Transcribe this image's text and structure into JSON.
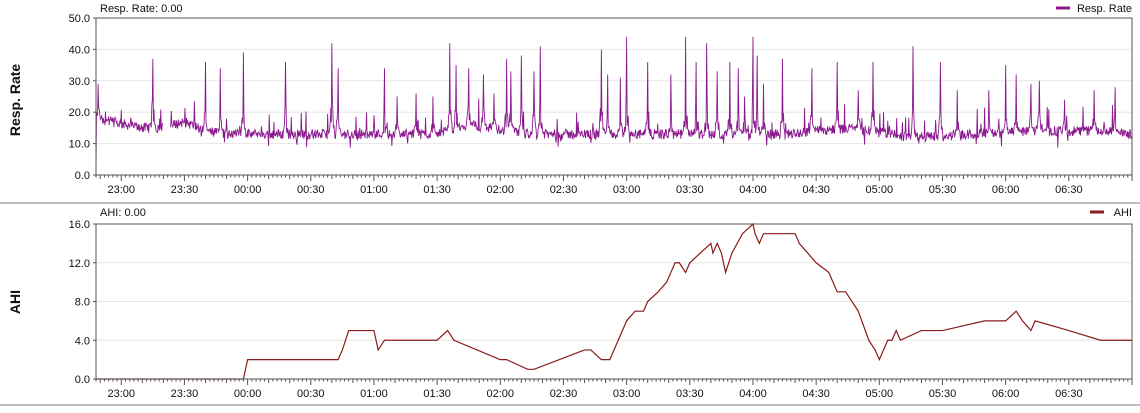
{
  "chart_data": [
    {
      "type": "line",
      "ylabel": "Resp. Rate",
      "readout": "Resp. Rate: 0.00",
      "legend": "Resp. Rate",
      "legend_position": "top-right",
      "color": "#8B1A8F",
      "ylim": [
        0,
        50
      ],
      "yticks": [
        "0.0",
        "10.0",
        "20.0",
        "30.0",
        "40.0",
        "50.0"
      ],
      "xlim": [
        "22:48",
        "07:00"
      ],
      "xticks": [
        "23:00",
        "23:30",
        "00:00",
        "00:30",
        "01:00",
        "01:30",
        "02:00",
        "02:30",
        "03:00",
        "03:30",
        "04:00",
        "04:30",
        "05:00",
        "05:30",
        "06:00",
        "06:30"
      ],
      "grid": true,
      "series": [
        {
          "baseline": [
            [
              "22:48",
              18
            ],
            [
              "23:10",
              15
            ],
            [
              "23:20",
              15
            ],
            [
              "23:30",
              17
            ],
            [
              "23:40",
              14
            ],
            [
              "23:50",
              13
            ],
            [
              "00:30",
              13
            ],
            [
              "00:50",
              13
            ],
            [
              "01:30",
              13
            ],
            [
              "01:45",
              16
            ],
            [
              "02:15",
              13
            ],
            [
              "02:45",
              13
            ],
            [
              "03:15",
              13
            ],
            [
              "03:45",
              13
            ],
            [
              "04:15",
              13
            ],
            [
              "04:45",
              15
            ],
            [
              "05:15",
              12
            ],
            [
              "05:45",
              13
            ],
            [
              "06:15",
              14
            ],
            [
              "06:45",
              14
            ],
            [
              "07:00",
              13
            ]
          ],
          "spikes": [
            [
              "22:49",
              29
            ],
            [
              "23:15",
              37
            ],
            [
              "23:40",
              36
            ],
            [
              "23:47",
              34
            ],
            [
              "23:58",
              39
            ],
            [
              "00:18",
              36
            ],
            [
              "00:40",
              42
            ],
            [
              "00:43",
              34
            ],
            [
              "01:05",
              34
            ],
            [
              "01:11",
              25
            ],
            [
              "01:20",
              26
            ],
            [
              "01:28",
              25
            ],
            [
              "01:36",
              42
            ],
            [
              "01:39",
              35
            ],
            [
              "01:45",
              34
            ],
            [
              "01:52",
              32
            ],
            [
              "01:57",
              26
            ],
            [
              "02:03",
              37
            ],
            [
              "02:05",
              33
            ],
            [
              "02:10",
              38
            ],
            [
              "02:16",
              33
            ],
            [
              "02:19",
              41
            ],
            [
              "02:48",
              40
            ],
            [
              "02:51",
              32
            ],
            [
              "02:57",
              31
            ],
            [
              "03:00",
              44
            ],
            [
              "03:10",
              36
            ],
            [
              "03:21",
              32
            ],
            [
              "03:28",
              44
            ],
            [
              "03:33",
              36
            ],
            [
              "03:38",
              42
            ],
            [
              "03:43",
              33
            ],
            [
              "03:49",
              36
            ],
            [
              "03:53",
              34
            ],
            [
              "03:56",
              25
            ],
            [
              "04:00",
              44
            ],
            [
              "04:02",
              38
            ],
            [
              "04:05",
              29
            ],
            [
              "04:14",
              37
            ],
            [
              "04:28",
              34
            ],
            [
              "04:40",
              36
            ],
            [
              "04:50",
              27
            ],
            [
              "04:57",
              36
            ],
            [
              "05:02",
              20
            ],
            [
              "05:16",
              41
            ],
            [
              "05:29",
              36
            ],
            [
              "05:37",
              27
            ],
            [
              "05:52",
              27
            ],
            [
              "06:00",
              35
            ],
            [
              "06:05",
              32
            ],
            [
              "06:12",
              29
            ],
            [
              "06:16",
              30
            ],
            [
              "06:28",
              24
            ],
            [
              "06:42",
              27
            ],
            [
              "06:52",
              28
            ]
          ],
          "gaps": [
            [
              "23:20",
              "23:23"
            ]
          ]
        }
      ]
    },
    {
      "type": "line",
      "ylabel": "AHI",
      "readout": "AHI: 0.00",
      "legend": "AHI",
      "legend_position": "top-right",
      "color": "#8B1A1A",
      "ylim": [
        0,
        16
      ],
      "yticks": [
        "0.0",
        "4.0",
        "8.0",
        "12.0",
        "16.0"
      ],
      "xlim": [
        "22:48",
        "07:00"
      ],
      "xticks": [
        "23:00",
        "23:30",
        "00:00",
        "00:30",
        "01:00",
        "01:30",
        "02:00",
        "02:30",
        "03:00",
        "03:30",
        "04:00",
        "04:30",
        "05:00",
        "05:30",
        "06:00",
        "06:30"
      ],
      "grid": true,
      "series": [
        {
          "x": [
            "22:48",
            "23:15",
            "23:22",
            "23:40",
            "23:58",
            "00:00",
            "00:43",
            "00:45",
            "00:48",
            "01:00",
            "01:02",
            "01:05",
            "01:30",
            "01:35",
            "01:38",
            "02:00",
            "02:03",
            "02:13",
            "02:16",
            "02:40",
            "02:43",
            "02:48",
            "02:52",
            "02:56",
            "03:00",
            "03:04",
            "03:08",
            "03:10",
            "03:15",
            "03:19",
            "03:21",
            "03:23",
            "03:25",
            "03:28",
            "03:30",
            "03:40",
            "03:41",
            "03:43",
            "03:45",
            "03:47",
            "03:50",
            "03:55",
            "04:00",
            "04:01",
            "04:03",
            "04:05",
            "04:20",
            "04:22",
            "04:30",
            "04:36",
            "04:40",
            "04:44",
            "04:50",
            "04:55",
            "04:58",
            "05:00",
            "05:02",
            "05:04",
            "05:06",
            "05:08",
            "05:10",
            "05:20",
            "05:30",
            "05:50",
            "06:00",
            "06:05",
            "06:08",
            "06:12",
            "06:14",
            "06:30",
            "06:45",
            "07:00"
          ],
          "y": [
            0,
            0,
            0,
            0,
            0,
            2,
            2,
            3,
            5,
            5,
            3,
            4,
            4,
            5,
            4,
            2,
            2,
            1,
            1,
            3,
            3,
            2,
            2,
            4,
            6,
            7,
            7,
            8,
            9,
            10,
            11,
            12,
            12,
            11,
            12,
            14,
            13,
            14,
            13,
            11,
            13,
            15,
            16,
            15,
            14,
            15,
            15,
            14,
            12,
            11,
            9,
            9,
            7,
            4,
            3,
            2,
            3,
            4,
            4,
            5,
            4,
            5,
            5,
            6,
            6,
            7,
            6,
            5,
            6,
            5,
            4,
            4
          ]
        }
      ]
    }
  ]
}
